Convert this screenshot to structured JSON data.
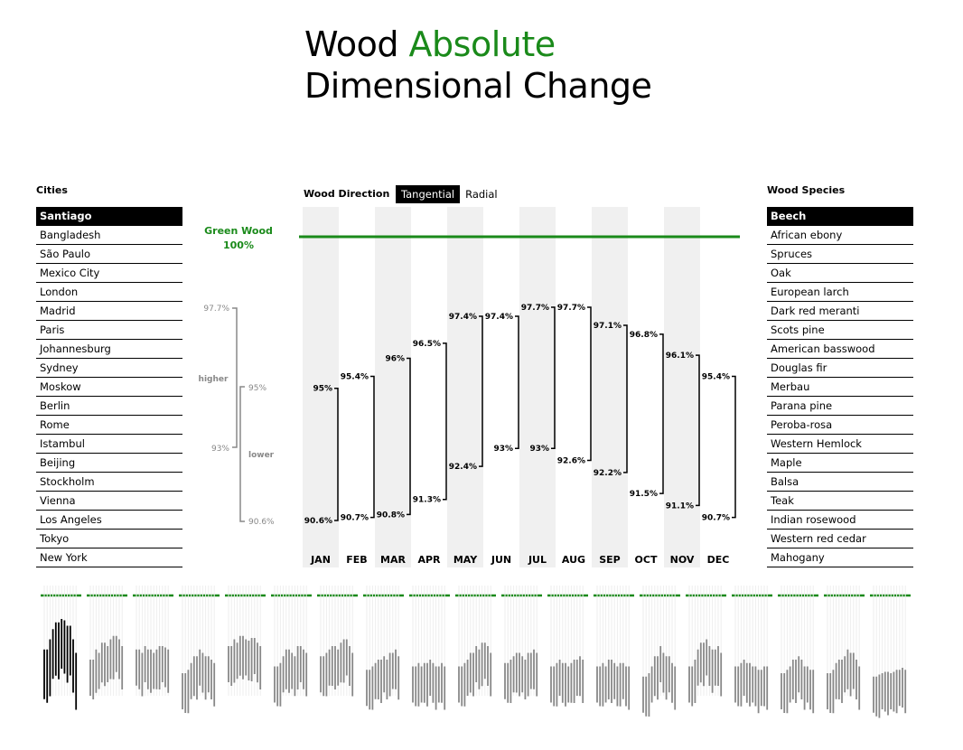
{
  "title": {
    "part1": "Wood ",
    "highlight": "Absolute",
    "line2": "Dimensional Change"
  },
  "cities": {
    "header": "Cities",
    "selected": "Santiago",
    "items": [
      "Santiago",
      "Bangladesh",
      "São Paulo",
      "Mexico City",
      "London",
      "Madrid",
      "Paris",
      "Johannesburg",
      "Sydney",
      "Moskow",
      "Berlin",
      "Rome",
      "Istambul",
      "Beijing",
      "Stockholm",
      "Vienna",
      "Los Angeles",
      "Tokyo",
      "New York"
    ]
  },
  "species": {
    "header": "Wood Species",
    "selected": "Beech",
    "items": [
      "Beech",
      "African ebony",
      "Spruces",
      "Oak",
      "European larch",
      "Dark red meranti",
      "Scots pine",
      "American basswood",
      "Douglas fir",
      "Merbau",
      "Parana pine",
      "Peroba-rosa",
      "Western Hemlock",
      "Maple",
      "Balsa",
      "Teak",
      "Indian rosewood",
      "Western red cedar",
      "Mahogany"
    ]
  },
  "wood_direction": {
    "label": "Wood Direction",
    "options": [
      "Tangential",
      "Radial"
    ],
    "selected": "Tangential"
  },
  "green_wood": {
    "line1": "Green Wood",
    "line2": "100%"
  },
  "legend": {
    "max": "97.7%",
    "mid": "95%",
    "min": "93%",
    "low": "90.6%",
    "higher": "higher",
    "lower": "lower"
  },
  "colors": {
    "accent": "#1a8a1a",
    "band": "#f0f0f0",
    "grey": "#888888"
  },
  "chart_data": {
    "type": "range-bar",
    "categories": [
      "JAN",
      "FEB",
      "MAR",
      "APR",
      "MAY",
      "JUN",
      "JUL",
      "AUG",
      "SEP",
      "OCT",
      "NOV",
      "DEC"
    ],
    "high": [
      95,
      95.4,
      96,
      96.5,
      97.4,
      97.4,
      97.7,
      97.7,
      97.1,
      96.8,
      96.1,
      95.4
    ],
    "low": [
      90.6,
      90.7,
      90.8,
      91.3,
      92.4,
      93,
      93,
      92.6,
      92.2,
      91.5,
      91.1,
      90.7
    ],
    "high_labels": [
      "95%",
      "95.4%",
      "96%",
      "96.5%",
      "97.4%",
      "97.4%",
      "97.7%",
      "97.7%",
      "97.1%",
      "96.8%",
      "96.1%",
      "95.4%"
    ],
    "low_labels": [
      "90.6%",
      "90.7%",
      "90.8%",
      "91.3%",
      "92.4%",
      "93%",
      "93%",
      "92.6%",
      "92.2%",
      "91.5%",
      "91.1%",
      "90.7%"
    ],
    "reference": 100,
    "ylim": [
      90.6,
      100
    ]
  },
  "thumbnails": {
    "count": 19,
    "selected_index": 0,
    "shapes": [
      [
        0.55,
        0.7,
        0.85,
        0.95,
        1,
        0.98,
        0.9,
        0.7,
        0.5
      ],
      [
        0.4,
        0.55,
        0.5,
        0.65,
        0.6,
        0.7,
        0.75,
        0.7,
        0.6
      ],
      [
        0.55,
        0.5,
        0.6,
        0.55,
        0.5,
        0.55,
        0.6,
        0.58,
        0.55
      ],
      [
        0.2,
        0.25,
        0.35,
        0.45,
        0.55,
        0.5,
        0.45,
        0.4,
        0.35
      ],
      [
        0.6,
        0.7,
        0.65,
        0.75,
        0.7,
        0.68,
        0.72,
        0.65,
        0.6
      ],
      [
        0.3,
        0.35,
        0.45,
        0.55,
        0.5,
        0.45,
        0.6,
        0.55,
        0.5
      ],
      [
        0.45,
        0.5,
        0.55,
        0.6,
        0.55,
        0.65,
        0.7,
        0.6,
        0.5
      ],
      [
        0.25,
        0.3,
        0.35,
        0.4,
        0.45,
        0.4,
        0.5,
        0.55,
        0.45
      ],
      [
        0.3,
        0.35,
        0.3,
        0.35,
        0.4,
        0.35,
        0.3,
        0.35,
        0.3
      ],
      [
        0.3,
        0.35,
        0.4,
        0.5,
        0.6,
        0.55,
        0.65,
        0.6,
        0.5
      ],
      [
        0.35,
        0.4,
        0.45,
        0.5,
        0.45,
        0.4,
        0.5,
        0.55,
        0.5
      ],
      [
        0.3,
        0.35,
        0.4,
        0.35,
        0.3,
        0.35,
        0.4,
        0.45,
        0.4
      ],
      [
        0.3,
        0.35,
        0.3,
        0.4,
        0.35,
        0.3,
        0.35,
        0.3,
        0.3
      ],
      [
        0.15,
        0.2,
        0.3,
        0.45,
        0.6,
        0.5,
        0.45,
        0.35,
        0.3
      ],
      [
        0.3,
        0.4,
        0.55,
        0.65,
        0.7,
        0.6,
        0.55,
        0.6,
        0.5
      ],
      [
        0.3,
        0.35,
        0.4,
        0.35,
        0.3,
        0.3,
        0.25,
        0.3,
        0.3
      ],
      [
        0.2,
        0.25,
        0.3,
        0.4,
        0.45,
        0.4,
        0.3,
        0.25,
        0.25
      ],
      [
        0.2,
        0.25,
        0.35,
        0.4,
        0.45,
        0.55,
        0.5,
        0.4,
        0.3
      ],
      [
        0.15,
        0.18,
        0.2,
        0.22,
        0.2,
        0.22,
        0.25,
        0.28,
        0.25
      ]
    ]
  }
}
